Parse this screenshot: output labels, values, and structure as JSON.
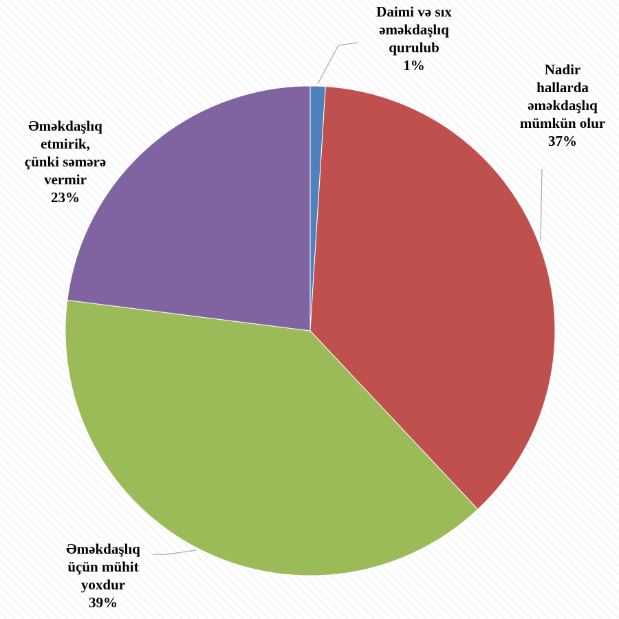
{
  "chart_data": {
    "type": "pie",
    "title": "",
    "slices": [
      {
        "label_lines": [
          "Daimi və sıx",
          "əməkdaşlıq",
          "qurulub"
        ],
        "percent_label": "1%",
        "value": 1,
        "color": "#4f81bd"
      },
      {
        "label_lines": [
          "Nadir",
          "hallarda",
          "əməkdaşlıq",
          "mümkün olur"
        ],
        "percent_label": "37%",
        "value": 37,
        "color": "#c0504d"
      },
      {
        "label_lines": [
          "Əməkdaşlıq",
          "üçün mühit",
          "yoxdur"
        ],
        "percent_label": "39%",
        "value": 39,
        "color": "#9bbb59"
      },
      {
        "label_lines": [
          "Əməkdaşlıq",
          "etmirik,",
          "çünki səmərə",
          "vermir"
        ],
        "percent_label": "23%",
        "value": 23,
        "color": "#8064a2"
      }
    ]
  }
}
